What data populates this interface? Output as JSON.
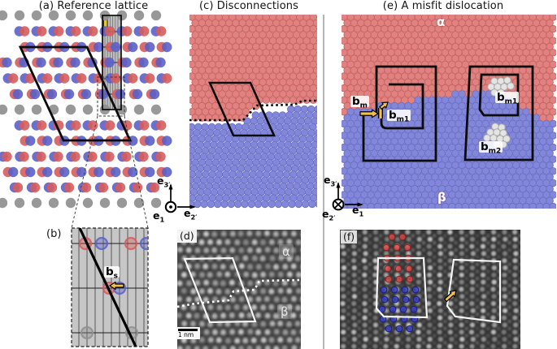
{
  "figure_titles": {
    "a": "(a) Reference lattice",
    "c": "(c) Disconnections",
    "e": "(e) A misfit dislocation"
  },
  "panel_labels": {
    "b": "(b)",
    "d": "(d)",
    "f": "(f)"
  },
  "phase_labels": {
    "alpha": "α",
    "beta": "β"
  },
  "scale_bar": {
    "label": "1 nm"
  },
  "vectors": {
    "bs": {
      "base": "b",
      "sub": "s"
    },
    "bm": {
      "base": "b",
      "sub": "m"
    },
    "bm1": {
      "base": "b",
      "sub": "m1"
    },
    "bm2": {
      "base": "b",
      "sub": "m2"
    }
  },
  "axes": {
    "c": {
      "up_base": "e",
      "up_sub": "3′",
      "out_base": "e",
      "out_sub": "1",
      "right_base": "e",
      "right_sub": "2′"
    },
    "e": {
      "up_base": "e",
      "up_sub": "3′",
      "out_base": "e",
      "out_sub": "2′",
      "right_base": "e",
      "right_sub": "1"
    }
  },
  "colors": {
    "lattice_red": "#e08280",
    "lattice_red_stroke": "#c75f5d",
    "lattice_blue": "#8287d9",
    "lattice_blue_stroke": "#686dc4",
    "dot_red": "#d65c5c",
    "dot_blue": "#5a61c8",
    "dot_gray": "#8f8f8f",
    "white_atom": "#e4e4e4",
    "white_atom_stroke": "#a8a8a8",
    "yellow_arrow": "#f3c14b",
    "panel_b_bg": "#c6c6c6",
    "stripe_bg": "#bdbdbd",
    "stripe_highlight": "#eec437",
    "stem_bg_d": "#474747",
    "stem_bg_f": "#343434",
    "stem_dot": "#d6d6d6",
    "circuit_black": "#0c0c0c",
    "circuit_white": "#f5f5f5",
    "separator": "#b5b5b5"
  }
}
